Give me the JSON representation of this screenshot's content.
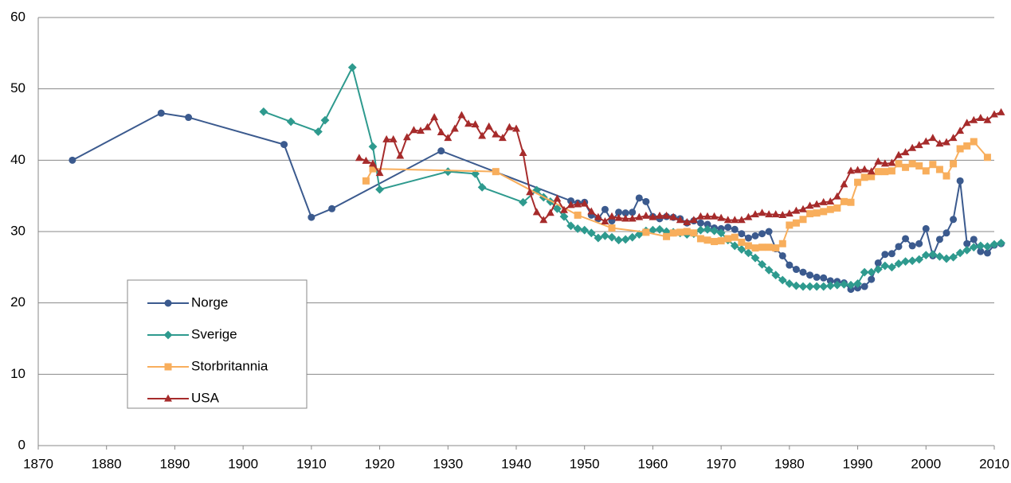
{
  "chart_data": {
    "type": "line",
    "xlim": [
      1870,
      2010
    ],
    "xticks": [
      1870,
      1880,
      1890,
      1900,
      1910,
      1920,
      1930,
      1940,
      1950,
      1960,
      1970,
      1980,
      1990,
      2000,
      2010
    ],
    "ylim": [
      0,
      60
    ],
    "yticks": [
      0,
      10,
      20,
      30,
      40,
      50,
      60
    ],
    "grid": true,
    "legend": "lower-left",
    "series": [
      {
        "name": "Norge",
        "color": "#3b5a8e",
        "marker": "circle",
        "x": [
          1875,
          1888,
          1892,
          1906,
          1910,
          1913,
          1929,
          1948,
          1949,
          1950,
          1951,
          1952,
          1953,
          1954,
          1955,
          1956,
          1957,
          1958,
          1959,
          1960,
          1961,
          1962,
          1963,
          1964,
          1965,
          1966,
          1967,
          1968,
          1969,
          1970,
          1971,
          1972,
          1973,
          1974,
          1975,
          1976,
          1977,
          1978,
          1979,
          1980,
          1981,
          1982,
          1983,
          1984,
          1985,
          1986,
          1987,
          1988,
          1989,
          1990,
          1991,
          1992,
          1993,
          1994,
          1995,
          1996,
          1997,
          1998,
          1999,
          2000,
          2001,
          2002,
          2003,
          2004,
          2005,
          2006,
          2007,
          2008,
          2009,
          2010,
          2011
        ],
        "values": [
          40.0,
          46.6,
          46.0,
          42.2,
          32.0,
          33.2,
          41.3,
          34.3,
          34.0,
          34.1,
          32.3,
          31.8,
          33.1,
          31.5,
          32.7,
          32.6,
          32.7,
          34.7,
          34.2,
          32.1,
          31.8,
          32.1,
          32.0,
          31.8,
          31.2,
          31.5,
          31.2,
          31.0,
          30.5,
          30.4,
          30.6,
          30.3,
          29.7,
          29.1,
          29.4,
          29.7,
          30.0,
          27.6,
          26.6,
          25.3,
          24.7,
          24.3,
          23.9,
          23.6,
          23.5,
          23.1,
          23.0,
          22.8,
          21.9,
          22.1,
          22.3,
          23.3,
          25.6,
          26.8,
          26.9,
          27.9,
          29.0,
          28.0,
          28.3,
          30.4,
          26.6,
          28.9,
          29.8,
          31.7,
          37.1,
          28.3,
          28.9,
          27.2,
          27.0,
          28.1,
          28.3
        ]
      },
      {
        "name": "Sverige",
        "color": "#2e9a8e",
        "marker": "diamond",
        "x": [
          1903,
          1907,
          1911,
          1912,
          1916,
          1919,
          1920,
          1930,
          1934,
          1935,
          1941,
          1943,
          1944,
          1945,
          1946,
          1947,
          1948,
          1949,
          1950,
          1951,
          1952,
          1953,
          1954,
          1955,
          1956,
          1957,
          1958,
          1959,
          1960,
          1961,
          1962,
          1963,
          1964,
          1965,
          1966,
          1967,
          1968,
          1969,
          1970,
          1971,
          1972,
          1973,
          1974,
          1975,
          1976,
          1977,
          1978,
          1979,
          1980,
          1981,
          1982,
          1983,
          1984,
          1985,
          1986,
          1987,
          1988,
          1989,
          1990,
          1991,
          1992,
          1993,
          1994,
          1995,
          1996,
          1997,
          1998,
          1999,
          2000,
          2001,
          2002,
          2003,
          2004,
          2005,
          2006,
          2007,
          2008,
          2009,
          2010,
          2011
        ],
        "values": [
          46.8,
          45.4,
          44.0,
          45.6,
          53.0,
          41.9,
          35.9,
          38.4,
          38.1,
          36.2,
          34.1,
          35.8,
          34.8,
          34.2,
          33.2,
          32.1,
          30.8,
          30.4,
          30.2,
          29.8,
          29.1,
          29.4,
          29.2,
          28.8,
          28.9,
          29.2,
          29.6,
          30.1,
          30.2,
          30.3,
          30.0,
          29.9,
          29.8,
          29.6,
          29.7,
          30.2,
          30.3,
          30.1,
          29.8,
          28.8,
          28.0,
          27.5,
          27.0,
          26.3,
          25.4,
          24.6,
          23.9,
          23.2,
          22.7,
          22.4,
          22.3,
          22.3,
          22.3,
          22.3,
          22.4,
          22.5,
          22.6,
          22.5,
          22.7,
          24.3,
          24.3,
          24.7,
          25.2,
          25.0,
          25.5,
          25.8,
          25.9,
          26.1,
          26.7,
          26.8,
          26.5,
          26.2,
          26.4,
          27.0,
          27.4,
          27.8,
          28.0,
          27.9,
          28.2,
          28.4
        ]
      },
      {
        "name": "Storbritannia",
        "color": "#f8ae5c",
        "marker": "square",
        "x": [
          1918,
          1919,
          1937,
          1949,
          1954,
          1959,
          1962,
          1963,
          1964,
          1965,
          1966,
          1967,
          1968,
          1969,
          1970,
          1971,
          1972,
          1973,
          1974,
          1975,
          1976,
          1977,
          1978,
          1979,
          1980,
          1981,
          1982,
          1983,
          1984,
          1985,
          1986,
          1987,
          1988,
          1989,
          1990,
          1991,
          1992,
          1993,
          1994,
          1995,
          1996,
          1997,
          1998,
          1999,
          2000,
          2001,
          2002,
          2003,
          2004,
          2005,
          2006,
          2007,
          2009
        ],
        "values": [
          37.1,
          38.8,
          38.4,
          32.3,
          30.5,
          29.9,
          29.3,
          29.8,
          29.9,
          30.0,
          29.8,
          29.0,
          28.8,
          28.6,
          28.7,
          29.0,
          29.2,
          28.5,
          28.0,
          27.7,
          27.8,
          27.8,
          27.7,
          28.3,
          30.9,
          31.2,
          31.7,
          32.5,
          32.6,
          32.8,
          33.1,
          33.3,
          34.2,
          34.1,
          36.9,
          37.6,
          37.7,
          38.4,
          38.4,
          38.5,
          39.5,
          39.0,
          39.5,
          39.2,
          38.5,
          39.4,
          38.7,
          37.8,
          39.5,
          41.6,
          42.0,
          42.6,
          40.4
        ]
      },
      {
        "name": "USA",
        "color": "#a62b2b",
        "marker": "triangle",
        "x": [
          1917,
          1918,
          1919,
          1920,
          1921,
          1922,
          1923,
          1924,
          1925,
          1926,
          1927,
          1928,
          1929,
          1930,
          1931,
          1932,
          1933,
          1934,
          1935,
          1936,
          1937,
          1938,
          1939,
          1940,
          1941,
          1942,
          1943,
          1944,
          1945,
          1946,
          1947,
          1948,
          1949,
          1950,
          1951,
          1952,
          1953,
          1954,
          1955,
          1956,
          1957,
          1958,
          1959,
          1960,
          1961,
          1962,
          1963,
          1964,
          1965,
          1966,
          1967,
          1968,
          1969,
          1970,
          1971,
          1972,
          1973,
          1974,
          1975,
          1976,
          1977,
          1978,
          1979,
          1980,
          1981,
          1982,
          1983,
          1984,
          1985,
          1986,
          1987,
          1988,
          1989,
          1990,
          1991,
          1992,
          1993,
          1994,
          1995,
          1996,
          1997,
          1998,
          1999,
          2000,
          2001,
          2002,
          2003,
          2004,
          2005,
          2006,
          2007,
          2008,
          2009,
          2010,
          2011
        ],
        "values": [
          40.3,
          39.9,
          39.5,
          38.2,
          42.9,
          42.9,
          40.6,
          43.2,
          44.2,
          44.1,
          44.6,
          46.0,
          43.9,
          43.1,
          44.4,
          46.3,
          45.1,
          45.0,
          43.4,
          44.7,
          43.6,
          43.1,
          44.6,
          44.4,
          41.0,
          35.5,
          32.7,
          31.6,
          32.6,
          34.6,
          33.0,
          33.7,
          33.8,
          33.9,
          32.8,
          32.0,
          31.4,
          32.1,
          31.9,
          31.8,
          31.8,
          32.0,
          32.2,
          32.0,
          32.2,
          32.2,
          32.0,
          31.6,
          31.3,
          31.6,
          32.1,
          32.1,
          32.1,
          31.9,
          31.6,
          31.6,
          31.6,
          32.0,
          32.4,
          32.6,
          32.4,
          32.4,
          32.3,
          32.5,
          32.9,
          33.1,
          33.6,
          33.8,
          34.1,
          34.2,
          34.9,
          36.6,
          38.5,
          38.6,
          38.7,
          38.4,
          39.8,
          39.5,
          39.6,
          40.7,
          41.1,
          41.7,
          42.1,
          42.6,
          43.1,
          42.3,
          42.5,
          43.1,
          44.1,
          45.2,
          45.6,
          45.9,
          45.6,
          46.4,
          46.7
        ]
      }
    ]
  }
}
